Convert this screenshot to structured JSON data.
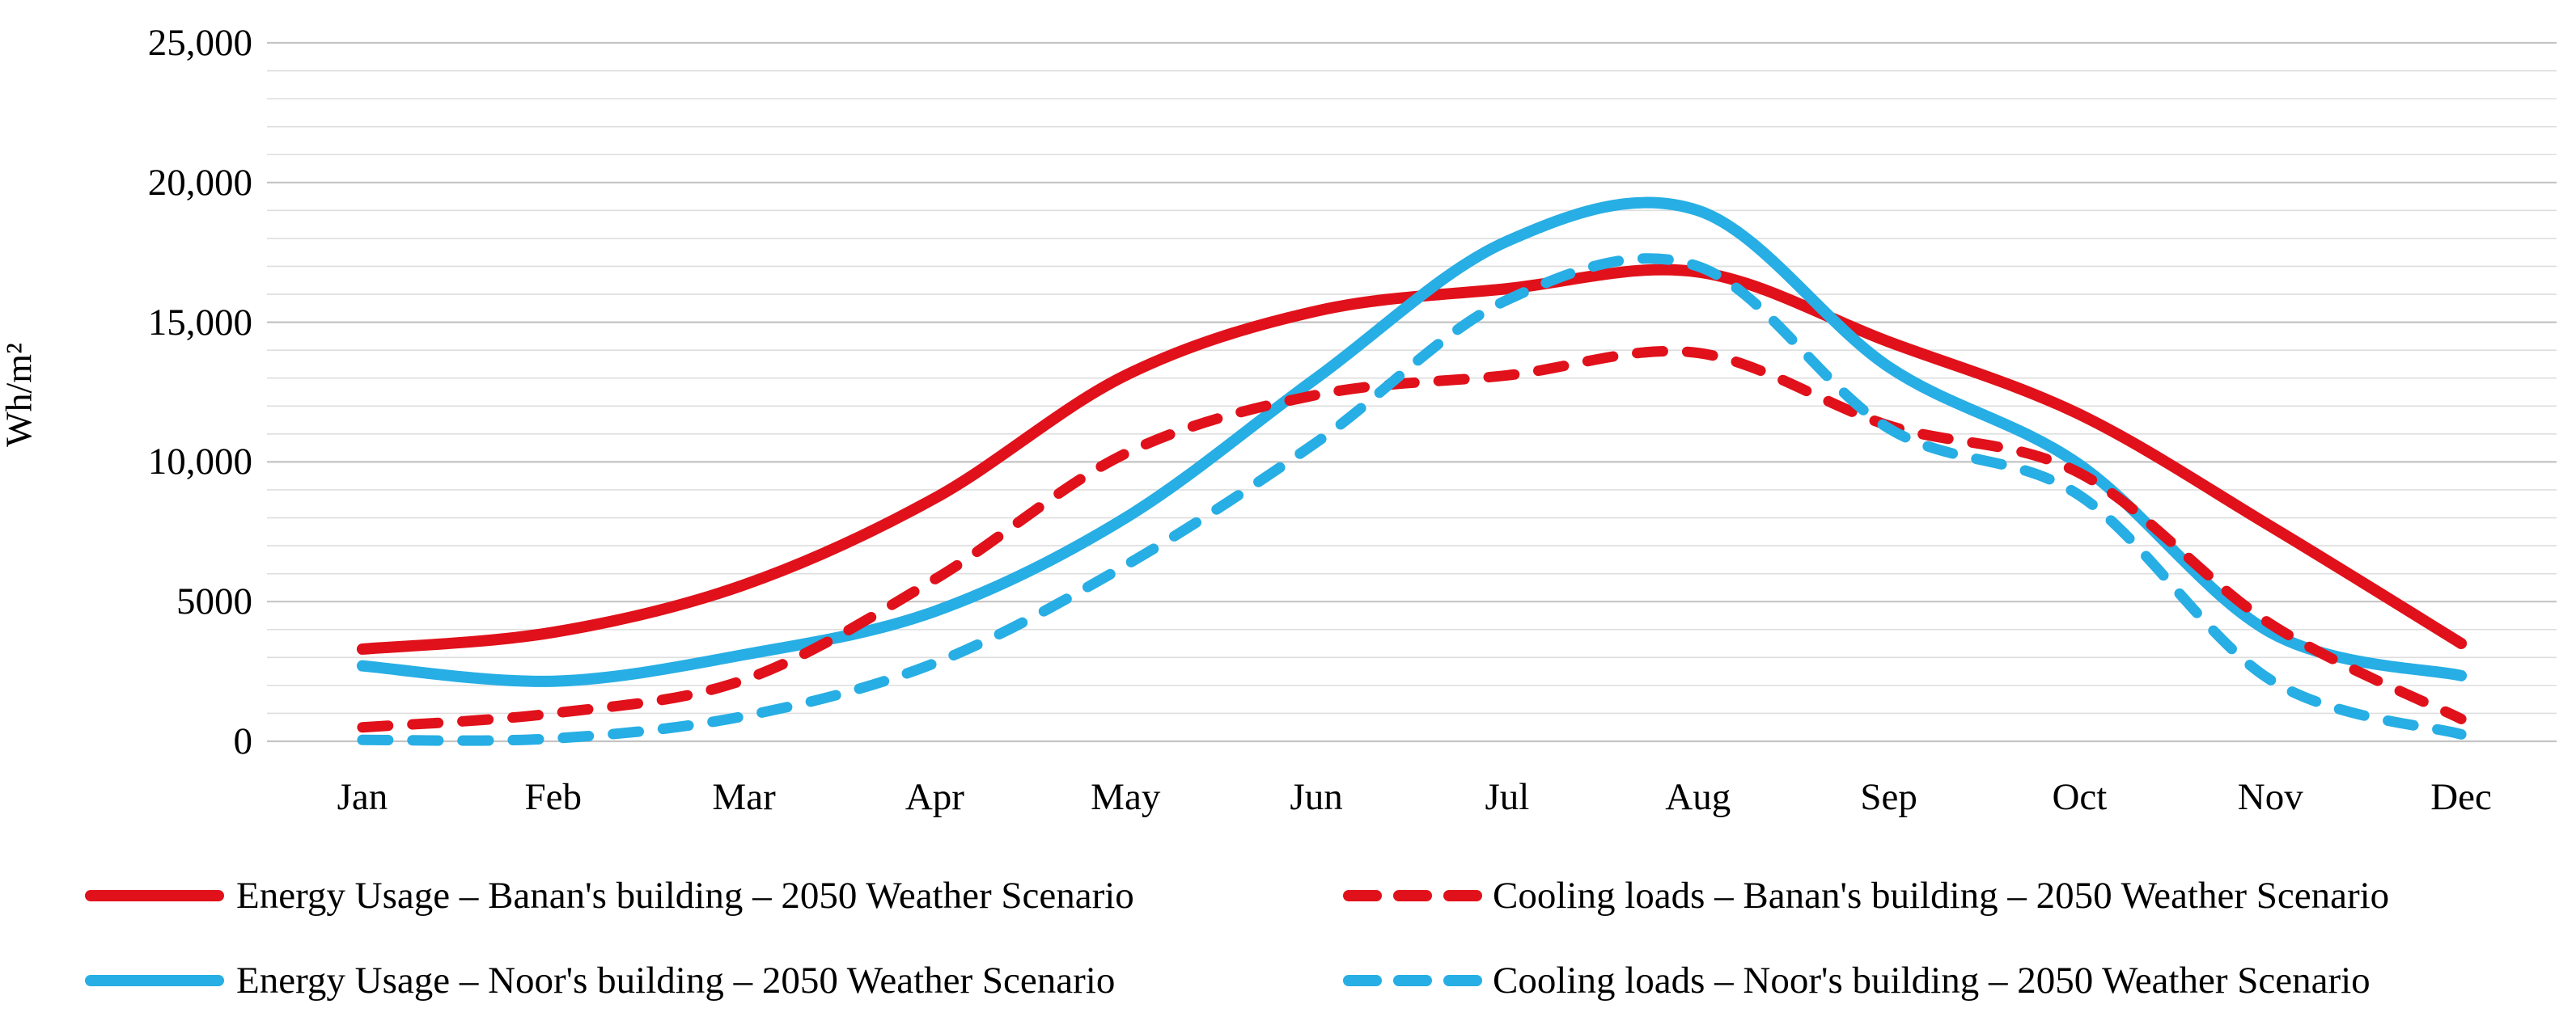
{
  "figure": {
    "y_axis_title": "Wh/m²",
    "background": "#FFFFFF",
    "colors": {
      "banan_red": "#E0111A",
      "noor_cyan": "#27AEE4",
      "grid_minor": "#DEDEDE",
      "grid_major": "#C4C4C4",
      "text": "#000000"
    }
  },
  "chart_data": {
    "type": "line",
    "title": "",
    "xlabel": "",
    "ylabel": "Wh/m²",
    "categories": [
      "Jan",
      "Feb",
      "Mar",
      "Apr",
      "May",
      "Jun",
      "Jul",
      "Aug",
      "Sep",
      "Oct",
      "Nov",
      "Dec"
    ],
    "ylim": [
      0,
      25000
    ],
    "minor_grid_step": 1000,
    "major_grid_step": 5000,
    "grid": "horizontal-only",
    "legend_position": "bottom-two-columns",
    "y_ticks": [
      {
        "value": 25000,
        "label": "25,000"
      },
      {
        "value": 20000,
        "label": "20,000"
      },
      {
        "value": 15000,
        "label": "15,000"
      },
      {
        "value": 10000,
        "label": "10,000"
      },
      {
        "value": 5000,
        "label": "5000"
      },
      {
        "value": 0,
        "label": "0"
      }
    ],
    "series": [
      {
        "id": "energy-banan",
        "name": "Energy Usage – Banan's building – 2050 Weather Scenario",
        "color": "#E0111A",
        "style": "solid",
        "values": [
          3300,
          3900,
          5600,
          8700,
          13100,
          15400,
          16200,
          16800,
          14300,
          11700,
          7700,
          3500
        ]
      },
      {
        "id": "cooling-banan",
        "name": "Cooling loads – Banan's building – 2050 Weather Scenario",
        "color": "#E0111A",
        "style": "dashed",
        "values": [
          500,
          1000,
          2200,
          5800,
          10300,
          12400,
          13100,
          13900,
          11300,
          9600,
          4200,
          800
        ]
      },
      {
        "id": "energy-noor",
        "name": "Energy Usage – Noor's building – 2050 Weather Scenario",
        "color": "#27AEE4",
        "style": "solid",
        "values": [
          2700,
          2150,
          3100,
          4650,
          8000,
          13000,
          17900,
          19000,
          13400,
          9900,
          3900,
          2350
        ]
      },
      {
        "id": "cooling-noor",
        "name": "Cooling loads – Noor's building – 2050 Weather Scenario",
        "color": "#27AEE4",
        "style": "dashed",
        "values": [
          50,
          100,
          900,
          2800,
          6300,
          10700,
          15800,
          17000,
          11200,
          8800,
          2200,
          250
        ]
      }
    ]
  },
  "legend": {
    "items": [
      {
        "series": "energy-banan",
        "row": 0,
        "col": 0
      },
      {
        "series": "cooling-banan",
        "row": 0,
        "col": 1
      },
      {
        "series": "energy-noor",
        "row": 1,
        "col": 0
      },
      {
        "series": "cooling-noor",
        "row": 1,
        "col": 1
      }
    ]
  }
}
